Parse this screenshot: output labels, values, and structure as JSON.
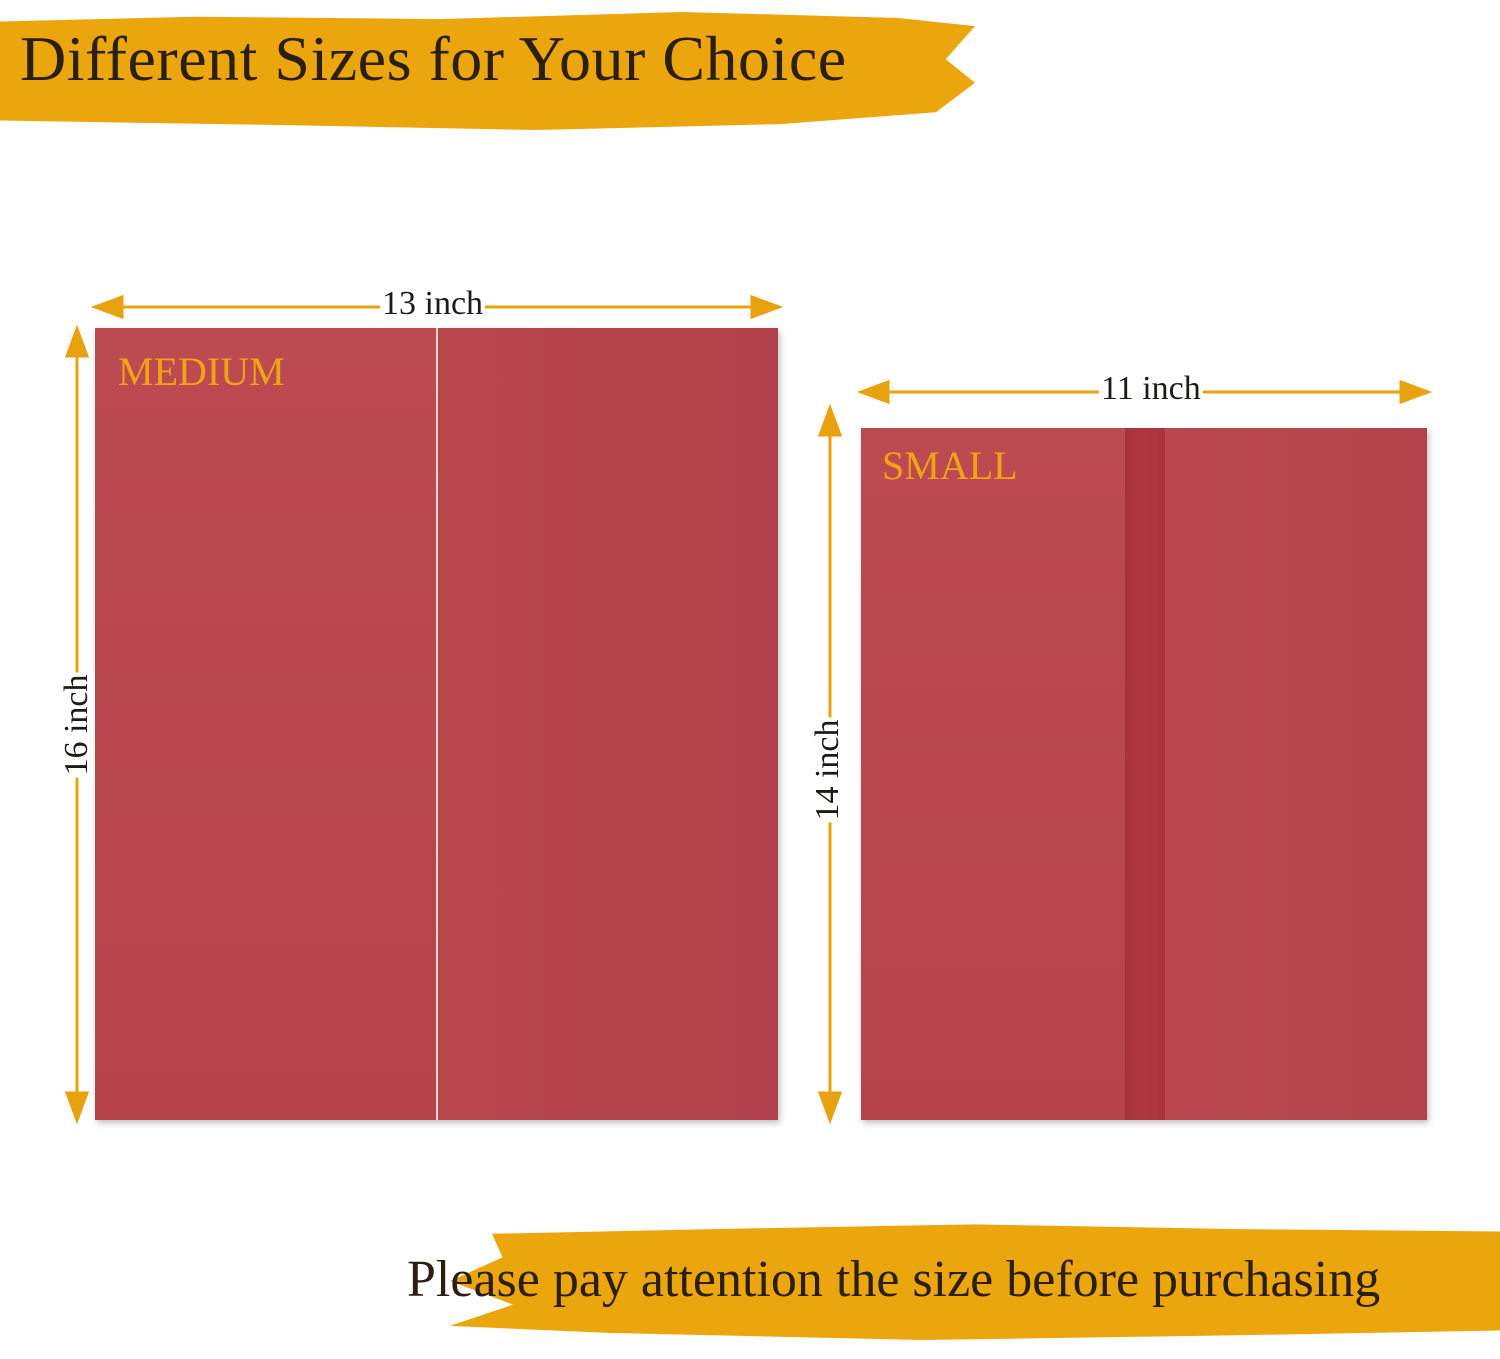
{
  "header": {
    "title": "Different Sizes for Your Choice"
  },
  "footer": {
    "note": "Please pay attention the size before purchasing"
  },
  "sizes": [
    {
      "label": "MEDIUM",
      "width": "13 inch",
      "height": "16 inch"
    },
    {
      "label": "SMALL",
      "width": "11 inch",
      "height": "14 inch"
    }
  ],
  "colors": {
    "accent": "#eba60e",
    "folder": "#b8454c",
    "label": "#f0a414",
    "text": "#2b1f12"
  }
}
